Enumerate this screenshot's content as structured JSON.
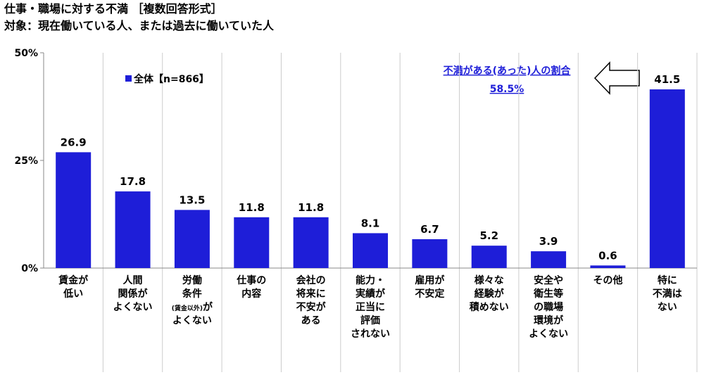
{
  "chart_data": {
    "type": "bar",
    "title": "仕事・職場に対する不満 ［複数回答形式］",
    "subtitle": "対象：現在働いている人、または過去に働いていた人",
    "categories": [
      "賃金が\n低い",
      "人間\n関係が\nよくない",
      "労働\n条件\n(賃金以外)が\nよくない",
      "仕事の\n内容",
      "会社の\n将来に\n不安が\nある",
      "能力・\n実績が\n正当に\n評価\nされない",
      "雇用が\n不安定",
      "様々な\n経験が\n積めない",
      "安全や\n衛生等\nの職場\n環境が\nよくない",
      "その他",
      "特に\n不満は\nない"
    ],
    "series": [
      {
        "name": "全体【n=866】",
        "color": "#1e1ed8",
        "values": [
          26.9,
          17.8,
          13.5,
          11.8,
          11.8,
          8.1,
          6.7,
          5.2,
          3.9,
          0.6,
          41.5
        ]
      }
    ],
    "ylim": [
      0,
      50
    ],
    "yticks": [
      {
        "value": 0,
        "label": "0%"
      },
      {
        "value": 25,
        "label": "25%"
      },
      {
        "value": 50,
        "label": "50%"
      }
    ],
    "annotation": {
      "text": "不満がある(あった)人の割合",
      "value": "58.5%"
    }
  }
}
